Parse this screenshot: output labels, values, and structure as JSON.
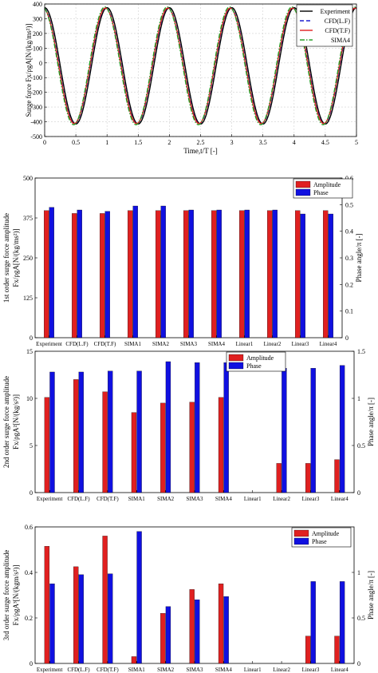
{
  "chart_data": [
    {
      "type": "line",
      "title": "",
      "xlabel": "Time,t/T [-]",
      "ylabel": "Surge force Fx/ρgA[N/(kg/ms²)]",
      "xlim": [
        0,
        5
      ],
      "ylim": [
        -500,
        400
      ],
      "xticks": [
        "0",
        "0.5",
        "1",
        "1.5",
        "2",
        "2.5",
        "3",
        "3.5",
        "4",
        "4.5",
        "5"
      ],
      "yticks": [
        "-500",
        "-400",
        "-300",
        "-200",
        "-100",
        "0",
        "100",
        "200",
        "300",
        "400"
      ],
      "grid": true,
      "legend_position": "top-right",
      "signal": {
        "amplitude": 395,
        "mean": -20,
        "period": 1.0,
        "peak_time": 1.0
      },
      "series": [
        {
          "name": "Experiment",
          "color": "#000000",
          "dash": "solid",
          "phase_shift": 0.0,
          "amplitude": 395
        },
        {
          "name": "CFD(L.F)",
          "color": "#1f1fd0",
          "dash": "dashed",
          "phase_shift": -0.02,
          "amplitude": 392
        },
        {
          "name": "CFD(T.F)",
          "color": "#e02020",
          "dash": "solid",
          "phase_shift": -0.025,
          "amplitude": 392
        },
        {
          "name": "SIMA4",
          "color": "#2aa02a",
          "dash": "dashdot",
          "phase_shift": -0.035,
          "amplitude": 400
        }
      ]
    },
    {
      "type": "bar",
      "title": "",
      "ylabel": "1st order surge force amplitude",
      "ylabel2": "Fx/ρgA[N/(kg/ms²)]",
      "ylabel_right": "Phase angle/π [-]",
      "categories": [
        "Experiment",
        "CFD(L.F)",
        "CFD(T.F)",
        "SIMA1",
        "SIMA2",
        "SIMA3",
        "SIMA4",
        "Linear1",
        "Linear2",
        "Linear3",
        "Linear4"
      ],
      "ylim": [
        0,
        500
      ],
      "ylim_right": [
        0,
        0.6
      ],
      "yticks": [
        "0",
        "125",
        "250",
        "375",
        "500"
      ],
      "yticks_right": [
        "0",
        "0.1",
        "0.2",
        "0.3",
        "0.4",
        "0.5",
        "0.6"
      ],
      "grid": false,
      "legend_position": "top-right",
      "series": [
        {
          "name": "Amplitude",
          "axis": "left",
          "color": "#e02020",
          "values": [
            398,
            389,
            389,
            398,
            398,
            398,
            398,
            398,
            398,
            398,
            398
          ]
        },
        {
          "name": "Phase",
          "axis": "right",
          "color": "#1010e0",
          "values": [
            0.49,
            0.48,
            0.475,
            0.495,
            0.495,
            0.48,
            0.48,
            0.48,
            0.48,
            0.465,
            0.465
          ]
        }
      ]
    },
    {
      "type": "bar",
      "title": "",
      "ylabel": "2nd order surge force amplitude",
      "ylabel2": "Fx/ρgA²[N/(kg/s²)]",
      "ylabel_right": "Phase angle/π [-]",
      "categories": [
        "Experiment",
        "CFD(L.F)",
        "CFD(T.F)",
        "SIMA1",
        "SIMA2",
        "SIMA3",
        "SIMA4",
        "Linear1",
        "Linear2",
        "Linear3",
        "Linear4"
      ],
      "ylim": [
        0,
        15
      ],
      "ylim_right": [
        0,
        1.5
      ],
      "yticks": [
        "0",
        "5",
        "10",
        "15"
      ],
      "yticks_right": [
        "0",
        "0.5",
        "1",
        "1.5"
      ],
      "grid": false,
      "legend_position": "top-center",
      "series": [
        {
          "name": "Amplitude",
          "axis": "left",
          "color": "#e02020",
          "values": [
            10.1,
            12.0,
            10.7,
            8.5,
            9.5,
            9.6,
            10.1,
            0,
            3.1,
            3.1,
            3.5
          ]
        },
        {
          "name": "Phase",
          "axis": "right",
          "color": "#1010e0",
          "values": [
            1.28,
            1.28,
            1.29,
            1.29,
            1.39,
            1.38,
            1.38,
            0,
            1.32,
            1.32,
            1.35
          ]
        }
      ]
    },
    {
      "type": "bar",
      "title": "",
      "ylabel": "3rd order surge force amplitude",
      "ylabel2": "Fx/ρgA³[N/(kgm/s²)]",
      "ylabel_right": "Phase angle/π [-]",
      "categories": [
        "Experiment",
        "CFD(L.F)",
        "CFD(T.F)",
        "SIMA1",
        "SIMA2",
        "SIMA3",
        "SIMA4",
        "Linear1",
        "Linear2",
        "Linear3",
        "Linear4"
      ],
      "ylim": [
        0,
        0.6
      ],
      "ylim_right": [
        0,
        1.5
      ],
      "yticks": [
        "0",
        "0.2",
        "0.4",
        "0.6"
      ],
      "yticks_right": [
        "0",
        "0.5",
        "1"
      ],
      "grid": false,
      "legend_position": "top-right",
      "series": [
        {
          "name": "Amplitude",
          "axis": "left",
          "color": "#e02020",
          "values": [
            0.515,
            0.425,
            0.56,
            0.03,
            0.22,
            0.325,
            0.35,
            0,
            0,
            0.12,
            0.12
          ]
        },
        {
          "name": "Phase",
          "axis": "right",
          "color": "#1010e0",
          "values": [
            0.875,
            0.975,
            0.985,
            1.45,
            0.625,
            0.7,
            0.735,
            0,
            0,
            0.9,
            0.9
          ]
        }
      ]
    }
  ]
}
